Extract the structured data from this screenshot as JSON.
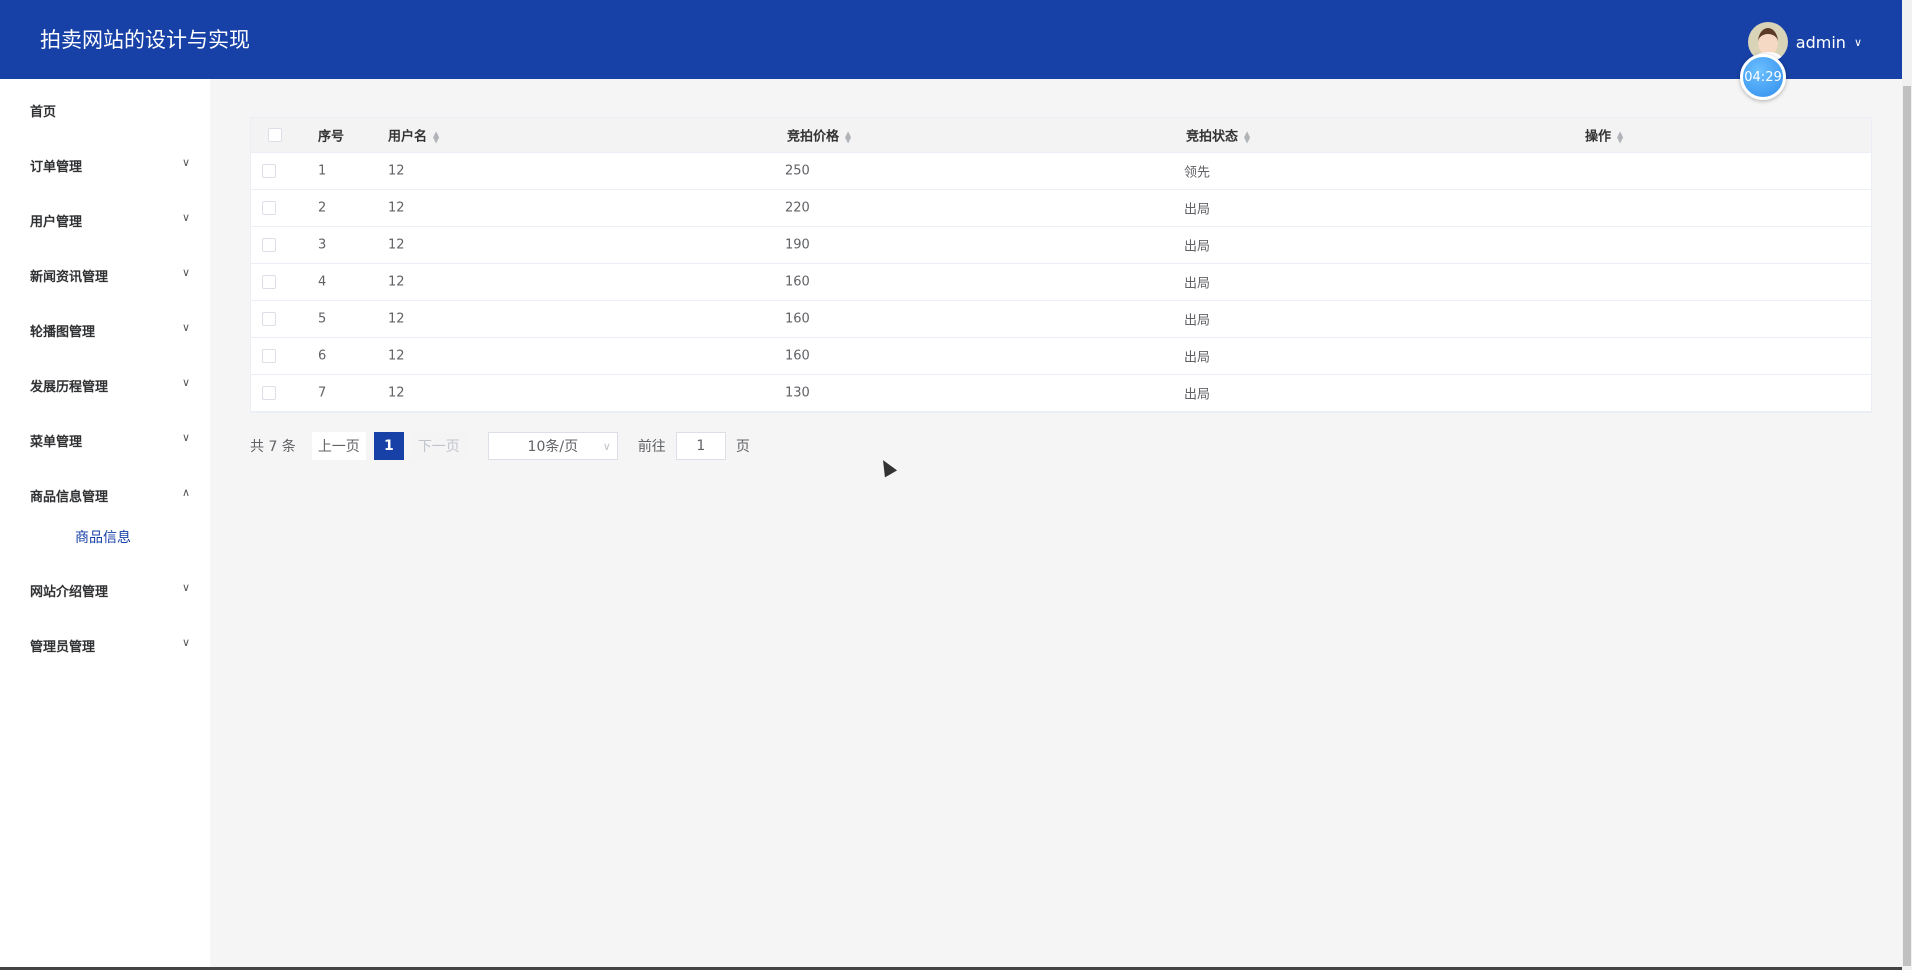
{
  "header": {
    "title": "拍卖网站的设计与实现",
    "username": "admin",
    "timer": "04:29"
  },
  "sidebar": {
    "items": [
      {
        "label": "首页",
        "expandable": false
      },
      {
        "label": "订单管理",
        "expandable": true
      },
      {
        "label": "用户管理",
        "expandable": true
      },
      {
        "label": "新闻资讯管理",
        "expandable": true
      },
      {
        "label": "轮播图管理",
        "expandable": true
      },
      {
        "label": "发展历程管理",
        "expandable": true
      },
      {
        "label": "菜单管理",
        "expandable": true
      },
      {
        "label": "商品信息管理",
        "expandable": true,
        "expanded": true,
        "children": [
          {
            "label": "商品信息"
          }
        ]
      },
      {
        "label": "网站介绍管理",
        "expandable": true
      },
      {
        "label": "管理员管理",
        "expandable": true
      }
    ]
  },
  "table": {
    "columns": [
      "序号",
      "用户名",
      "竞拍价格",
      "竞拍状态",
      "操作"
    ],
    "rows": [
      {
        "index": "1",
        "username": "12",
        "price": "250",
        "status": "领先"
      },
      {
        "index": "2",
        "username": "12",
        "price": "220",
        "status": "出局"
      },
      {
        "index": "3",
        "username": "12",
        "price": "190",
        "status": "出局"
      },
      {
        "index": "4",
        "username": "12",
        "price": "160",
        "status": "出局"
      },
      {
        "index": "5",
        "username": "12",
        "price": "160",
        "status": "出局"
      },
      {
        "index": "6",
        "username": "12",
        "price": "160",
        "status": "出局"
      },
      {
        "index": "7",
        "username": "12",
        "price": "130",
        "status": "出局"
      }
    ]
  },
  "pagination": {
    "total": "共 7 条",
    "prev": "上一页",
    "current": "1",
    "next": "下一页",
    "page_size": "10条/页",
    "goto_label": "前往",
    "goto_value": "1",
    "goto_suffix": "页"
  },
  "colors": {
    "brand": "#1741a6"
  }
}
